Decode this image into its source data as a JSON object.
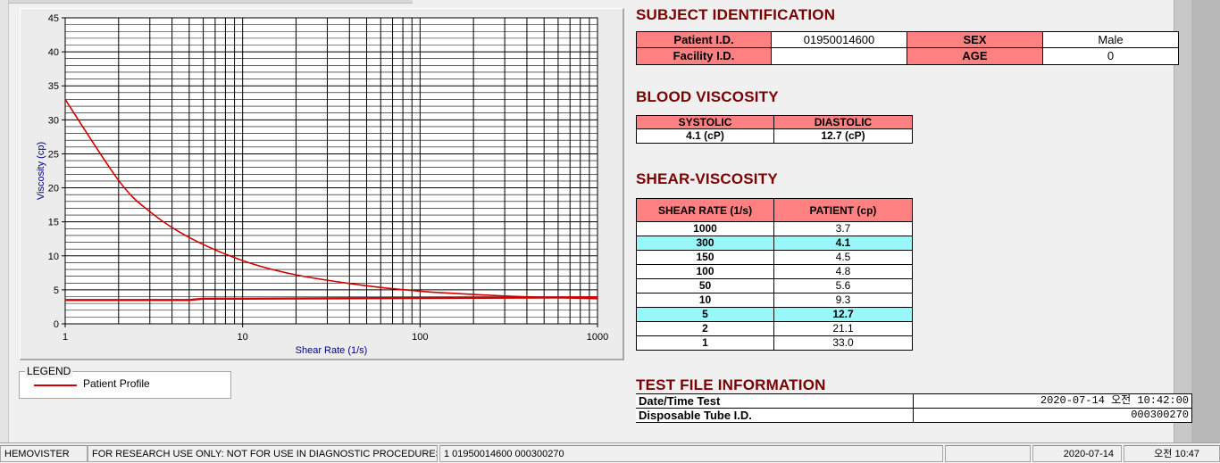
{
  "subject": {
    "title": "SUBJECT IDENTIFICATION",
    "patient_id_label": "Patient I.D.",
    "patient_id": "01950014600",
    "facility_id_label": "Facility I.D.",
    "facility_id": "",
    "sex_label": "SEX",
    "sex": "Male",
    "age_label": "AGE",
    "age": "0"
  },
  "blood_viscosity": {
    "title": "BLOOD VISCOSITY",
    "systolic_label": "SYSTOLIC",
    "diastolic_label": "DIASTOLIC",
    "systolic": "4.1 (cP)",
    "diastolic": "12.7 (cP)"
  },
  "shear_viscosity": {
    "title": "SHEAR-VISCOSITY",
    "col_rate": "SHEAR RATE (1/s)",
    "col_patient": "PATIENT (cp)",
    "rows": [
      {
        "rate": "1000",
        "value": "3.7",
        "highlight": false
      },
      {
        "rate": "300",
        "value": "4.1",
        "highlight": true
      },
      {
        "rate": "150",
        "value": "4.5",
        "highlight": false
      },
      {
        "rate": "100",
        "value": "4.8",
        "highlight": false
      },
      {
        "rate": "50",
        "value": "5.6",
        "highlight": false
      },
      {
        "rate": "10",
        "value": "9.3",
        "highlight": false
      },
      {
        "rate": "5",
        "value": "12.7",
        "highlight": true
      },
      {
        "rate": "2",
        "value": "21.1",
        "highlight": false
      },
      {
        "rate": "1",
        "value": "33.0",
        "highlight": false
      }
    ]
  },
  "test_file": {
    "title": "TEST FILE INFORMATION",
    "date_label": "Date/Time Test",
    "date_value": "2020-07-14   오전 10:42:00",
    "tube_label": "Disposable Tube I.D.",
    "tube_value": "000300270"
  },
  "legend": {
    "title": "LEGEND",
    "label": "Patient Profile"
  },
  "status_bar": {
    "app": "HEMOVISTER",
    "notice": "FOR RESEARCH USE ONLY: NOT FOR USE IN DIAGNOSTIC PROCEDURES",
    "record": "1  01950014600  000300270",
    "date": "2020-07-14",
    "time": "오전 10:47"
  },
  "chart_data": {
    "type": "line",
    "xlabel": "Shear Rate (1/s)",
    "ylabel": "Viscosity (cp)",
    "x_scale": "log",
    "xlim": [
      1,
      1000
    ],
    "ylim": [
      0,
      45
    ],
    "x_ticks": [
      "1",
      "10",
      "100",
      "1000"
    ],
    "y_ticks": [
      "0",
      "5",
      "10",
      "15",
      "20",
      "25",
      "30",
      "35",
      "40",
      "45"
    ],
    "grid": true,
    "color": "#d00000",
    "series": [
      {
        "x": [
          1,
          2,
          3,
          5,
          10,
          20,
          50,
          100,
          150,
          300,
          500,
          1000
        ],
        "y": [
          33.0,
          21.1,
          16.5,
          12.7,
          9.3,
          7.2,
          5.6,
          4.8,
          4.5,
          4.1,
          3.9,
          3.7
        ]
      },
      {
        "x": [
          1,
          5,
          6,
          10,
          100,
          1000
        ],
        "y": [
          3.5,
          3.5,
          3.7,
          3.7,
          3.8,
          3.9
        ]
      }
    ],
    "color_grid": "#000000",
    "color_axis_text": "#000080"
  }
}
